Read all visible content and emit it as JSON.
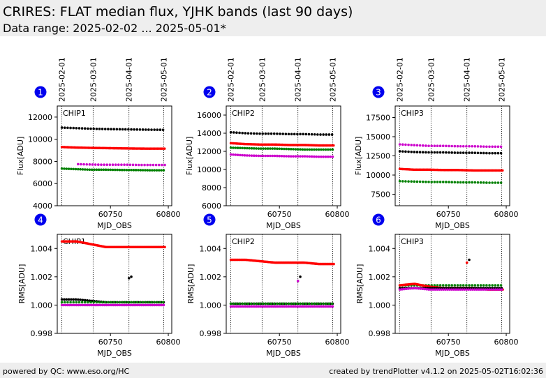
{
  "header": {
    "title": "CRIRES: FLAT median flux, YJHK bands (last 90 days)",
    "subtitle": "Data range: 2025-02-02 ... 2025-05-01*"
  },
  "footer": {
    "left": "powered by QC: www.eso.org/HC",
    "right": "created by trendPlotter v4.1.2 on 2025-05-02T16:02:36"
  },
  "colors": {
    "badge": "#0000ee",
    "red": "#ff0000",
    "black": "#000000",
    "green": "#008000",
    "magenta": "#cc00cc"
  },
  "chart_data": [
    {
      "index": "1",
      "type": "scatter",
      "chip_label": "CHIP1",
      "xlabel": "MJD_OBS",
      "ylabel": "Flux[ADU]",
      "xlim": [
        60704,
        60803
      ],
      "ylim": [
        4000,
        13000
      ],
      "yticks": [
        4000,
        6000,
        8000,
        10000,
        12000
      ],
      "xticks": [
        60750,
        60800
      ],
      "date_markers": [
        {
          "mjd": 60708,
          "label": "2025-02-01"
        },
        {
          "mjd": 60735,
          "label": "2025-03-01"
        },
        {
          "mjd": 60766,
          "label": "2025-04-01"
        },
        {
          "mjd": 60796,
          "label": "2025-05-01"
        }
      ],
      "series": [
        {
          "color": "black",
          "start": 60708,
          "end": 60797,
          "step": 2.5,
          "y": [
            11050,
            11000,
            10950,
            10920,
            10900,
            10880,
            10860,
            10850
          ]
        },
        {
          "color": "red",
          "start": 60708,
          "end": 60797,
          "step": 1.2,
          "y": [
            9300,
            9250,
            9220,
            9200,
            9180,
            9160,
            9150,
            9150
          ]
        },
        {
          "color": "magenta",
          "start": 60722,
          "end": 60797,
          "step": 2.5,
          "y": [
            7750,
            7720,
            7700,
            7700,
            7700,
            7680,
            7680,
            7680
          ]
        },
        {
          "color": "green",
          "start": 60708,
          "end": 60797,
          "step": 2,
          "y": [
            7350,
            7300,
            7250,
            7250,
            7230,
            7220,
            7200,
            7200
          ]
        }
      ]
    },
    {
      "index": "2",
      "type": "scatter",
      "chip_label": "CHIP2",
      "xlabel": "MJD_OBS",
      "ylabel": "Flux[ADU]",
      "xlim": [
        60704,
        60803
      ],
      "ylim": [
        6000,
        17000
      ],
      "yticks": [
        6000,
        8000,
        10000,
        12000,
        14000,
        16000
      ],
      "xticks": [
        60750,
        60800
      ],
      "date_markers": [
        {
          "mjd": 60708,
          "label": "2025-02-01"
        },
        {
          "mjd": 60735,
          "label": "2025-03-01"
        },
        {
          "mjd": 60766,
          "label": "2025-04-01"
        },
        {
          "mjd": 60796,
          "label": "2025-05-01"
        }
      ],
      "series": [
        {
          "color": "black",
          "start": 60708,
          "end": 60797,
          "step": 2.5,
          "y": [
            14100,
            14000,
            13950,
            13950,
            13900,
            13900,
            13850,
            13850
          ]
        },
        {
          "color": "red",
          "start": 60708,
          "end": 60797,
          "step": 1.2,
          "y": [
            12900,
            12800,
            12750,
            12750,
            12700,
            12700,
            12650,
            12650
          ]
        },
        {
          "color": "green",
          "start": 60708,
          "end": 60797,
          "step": 2,
          "y": [
            12400,
            12350,
            12300,
            12300,
            12250,
            12200,
            12200,
            12200
          ]
        },
        {
          "color": "magenta",
          "start": 60708,
          "end": 60797,
          "step": 2,
          "y": [
            11650,
            11550,
            11500,
            11500,
            11450,
            11450,
            11400,
            11400
          ]
        }
      ]
    },
    {
      "index": "3",
      "type": "scatter",
      "chip_label": "CHIP3",
      "xlabel": "MJD_OBS",
      "ylabel": "Flux[ADU]",
      "xlim": [
        60704,
        60803
      ],
      "ylim": [
        6000,
        19000
      ],
      "yticks": [
        7500,
        10000,
        12500,
        15000,
        17500
      ],
      "xticks": [
        60750,
        60800
      ],
      "date_markers": [
        {
          "mjd": 60708,
          "label": "2025-02-01"
        },
        {
          "mjd": 60735,
          "label": "2025-03-01"
        },
        {
          "mjd": 60766,
          "label": "2025-04-01"
        },
        {
          "mjd": 60796,
          "label": "2025-05-01"
        }
      ],
      "series": [
        {
          "color": "magenta",
          "start": 60708,
          "end": 60797,
          "step": 2.5,
          "y": [
            14000,
            13900,
            13800,
            13800,
            13750,
            13750,
            13700,
            13700
          ]
        },
        {
          "color": "black",
          "start": 60708,
          "end": 60797,
          "step": 2.5,
          "y": [
            13100,
            13000,
            12950,
            12950,
            12900,
            12900,
            12850,
            12850
          ]
        },
        {
          "color": "red",
          "start": 60708,
          "end": 60797,
          "step": 1.2,
          "y": [
            10800,
            10700,
            10700,
            10650,
            10650,
            10600,
            10600,
            10600
          ]
        },
        {
          "color": "green",
          "start": 60708,
          "end": 60797,
          "step": 2.5,
          "y": [
            9200,
            9150,
            9100,
            9100,
            9050,
            9050,
            9000,
            9000
          ]
        }
      ]
    },
    {
      "index": "4",
      "type": "scatter",
      "chip_label": "CHIP1",
      "xlabel": "MJD_OBS",
      "ylabel": "RMS[ADU]",
      "xlim": [
        60704,
        60803
      ],
      "ylim": [
        0.998,
        1.005
      ],
      "yticks": [
        0.998,
        1.0,
        1.002,
        1.004
      ],
      "xticks": [
        60750,
        60800
      ],
      "date_markers": [
        {
          "mjd": 60708,
          "label": "2025-02-01"
        },
        {
          "mjd": 60735,
          "label": "2025-03-01"
        },
        {
          "mjd": 60766,
          "label": "2025-04-01"
        },
        {
          "mjd": 60796,
          "label": "2025-05-01"
        }
      ],
      "series": [
        {
          "color": "red",
          "start": 60708,
          "end": 60797,
          "step": 1,
          "y": [
            1.0045,
            1.0045,
            1.0043,
            1.0041,
            1.0041,
            1.0041,
            1.0041,
            1.0041
          ]
        },
        {
          "color": "black",
          "start": 60708,
          "end": 60797,
          "step": 2,
          "y": [
            1.0004,
            1.0004,
            1.0003,
            1.0002,
            1.0002,
            1.0002,
            1.0002,
            1.0002
          ]
        },
        {
          "color": "green",
          "start": 60708,
          "end": 60797,
          "step": 2.5,
          "y": [
            1.0002,
            1.0002,
            1.0002,
            1.0002,
            1.0002,
            1.0002,
            1.0002,
            1.0002
          ]
        },
        {
          "color": "magenta",
          "start": 60708,
          "end": 60797,
          "step": 1.6,
          "y": [
            1.0,
            1.0,
            1.0,
            1.0,
            1.0,
            1.0,
            1.0,
            1.0
          ]
        },
        {
          "color": "black",
          "points": [
            [
              60766,
              1.0019
            ],
            [
              60768,
              1.002
            ]
          ]
        }
      ]
    },
    {
      "index": "5",
      "type": "scatter",
      "chip_label": "CHIP2",
      "xlabel": "MJD_OBS",
      "ylabel": "RMS[ADU]",
      "xlim": [
        60704,
        60803
      ],
      "ylim": [
        0.998,
        1.005
      ],
      "yticks": [
        0.998,
        1.0,
        1.002,
        1.004
      ],
      "xticks": [
        60750,
        60800
      ],
      "date_markers": [
        {
          "mjd": 60708,
          "label": "2025-02-01"
        },
        {
          "mjd": 60735,
          "label": "2025-03-01"
        },
        {
          "mjd": 60766,
          "label": "2025-04-01"
        },
        {
          "mjd": 60796,
          "label": "2025-05-01"
        }
      ],
      "series": [
        {
          "color": "red",
          "start": 60708,
          "end": 60797,
          "step": 1,
          "y": [
            1.0032,
            1.0032,
            1.0031,
            1.003,
            1.003,
            1.003,
            1.0029,
            1.0029
          ]
        },
        {
          "color": "black",
          "start": 60708,
          "end": 60797,
          "step": 2,
          "y": [
            1.0001,
            1.0001,
            1.0001,
            1.0001,
            1.0001,
            1.0001,
            1.0001,
            1.0001
          ]
        },
        {
          "color": "green",
          "start": 60708,
          "end": 60797,
          "step": 2.5,
          "y": [
            1.0001,
            1.0001,
            1.0001,
            1.0001,
            1.0001,
            1.0001,
            1.0001,
            1.0001
          ]
        },
        {
          "color": "magenta",
          "start": 60708,
          "end": 60797,
          "step": 1.6,
          "y": [
            0.9999,
            0.9999,
            0.9999,
            0.9999,
            0.9999,
            0.9999,
            0.9999,
            0.9999
          ]
        },
        {
          "color": "magenta",
          "points": [
            [
              60766,
              1.0017
            ]
          ]
        },
        {
          "color": "black",
          "points": [
            [
              60768,
              1.002
            ]
          ]
        }
      ]
    },
    {
      "index": "6",
      "type": "scatter",
      "chip_label": "CHIP3",
      "xlabel": "MJD_OBS",
      "ylabel": "RMS[ADU]",
      "xlim": [
        60704,
        60803
      ],
      "ylim": [
        0.998,
        1.005
      ],
      "yticks": [
        0.998,
        1.0,
        1.002,
        1.004
      ],
      "xticks": [
        60750,
        60800
      ],
      "date_markers": [
        {
          "mjd": 60708,
          "label": "2025-02-01"
        },
        {
          "mjd": 60735,
          "label": "2025-03-01"
        },
        {
          "mjd": 60766,
          "label": "2025-04-01"
        },
        {
          "mjd": 60796,
          "label": "2025-05-01"
        }
      ],
      "series": [
        {
          "color": "green",
          "start": 60708,
          "end": 60797,
          "step": 2.5,
          "y": [
            1.0014,
            1.0014,
            1.0014,
            1.0014,
            1.0014,
            1.0014,
            1.0014,
            1.0014
          ]
        },
        {
          "color": "red",
          "start": 60708,
          "end": 60797,
          "step": 1,
          "y": [
            1.0014,
            1.0015,
            1.0013,
            1.0012,
            1.0012,
            1.0012,
            1.0011,
            1.0011
          ]
        },
        {
          "color": "black",
          "start": 60708,
          "end": 60797,
          "step": 2,
          "y": [
            1.0012,
            1.0012,
            1.0012,
            1.0012,
            1.0012,
            1.0012,
            1.0012,
            1.0012
          ]
        },
        {
          "color": "magenta",
          "start": 60708,
          "end": 60797,
          "step": 1.8,
          "y": [
            1.0011,
            1.0012,
            1.0011,
            1.0011,
            1.0011,
            1.0011,
            1.0011,
            1.0011
          ]
        },
        {
          "color": "red",
          "points": [
            [
              60766,
              1.003
            ]
          ]
        },
        {
          "color": "black",
          "points": [
            [
              60768,
              1.0032
            ]
          ]
        }
      ]
    }
  ]
}
